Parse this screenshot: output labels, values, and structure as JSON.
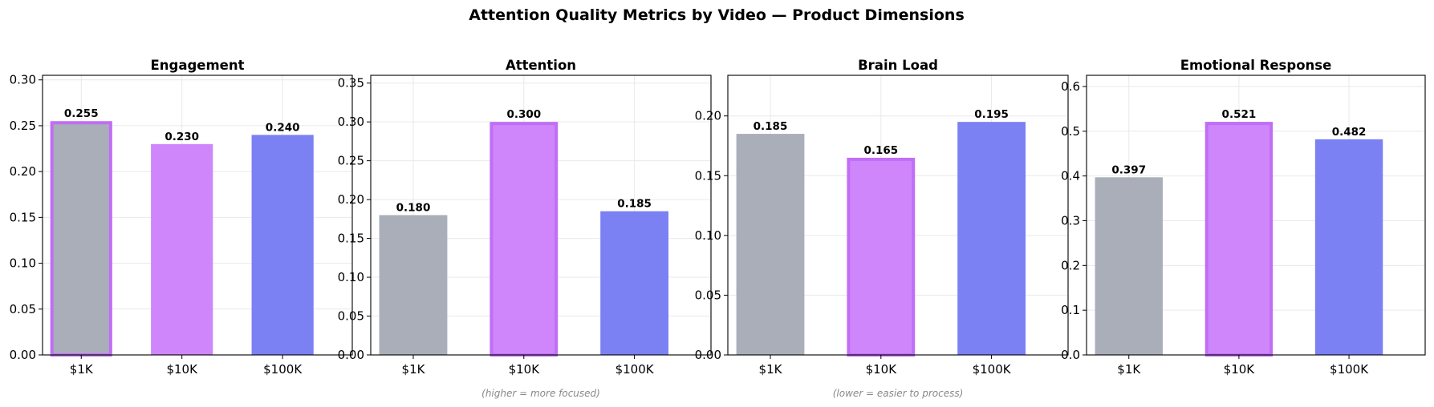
{
  "figure": {
    "title": "Attention Quality Metrics by Video — Product Dimensions"
  },
  "colors": {
    "bar_1k": "#a9aeb9",
    "bar_10k": "#cf86fb",
    "bar_100k": "#7b80f3",
    "highlight_edge": "#c06ef5"
  },
  "chart_data": [
    {
      "type": "bar",
      "title": "Engagement",
      "categories": [
        "$1K",
        "$10K",
        "$100K"
      ],
      "values": [
        0.255,
        0.23,
        0.24
      ],
      "value_labels": [
        "0.255",
        "0.230",
        "0.240"
      ],
      "highlight_index": 0,
      "ylim": [
        0,
        0.305
      ],
      "yticks": [
        0.0,
        0.05,
        0.1,
        0.15,
        0.2,
        0.25,
        0.3
      ],
      "ytick_labels": [
        "0.00",
        "0.05",
        "0.10",
        "0.15",
        "0.20",
        "0.25",
        "0.30"
      ],
      "note": "",
      "grid": true
    },
    {
      "type": "bar",
      "title": "Attention",
      "categories": [
        "$1K",
        "$10K",
        "$100K"
      ],
      "values": [
        0.18,
        0.3,
        0.185
      ],
      "value_labels": [
        "0.180",
        "0.300",
        "0.185"
      ],
      "highlight_index": 1,
      "ylim": [
        0,
        0.36
      ],
      "yticks": [
        0.0,
        0.05,
        0.1,
        0.15,
        0.2,
        0.25,
        0.3,
        0.35
      ],
      "ytick_labels": [
        "0.00",
        "0.05",
        "0.10",
        "0.15",
        "0.20",
        "0.25",
        "0.30",
        "0.35"
      ],
      "note": "(higher = more focused)",
      "grid": true
    },
    {
      "type": "bar",
      "title": "Brain Load",
      "categories": [
        "$1K",
        "$10K",
        "$100K"
      ],
      "values": [
        0.185,
        0.165,
        0.195
      ],
      "value_labels": [
        "0.185",
        "0.165",
        "0.195"
      ],
      "highlight_index": 1,
      "ylim": [
        0,
        0.234
      ],
      "yticks": [
        0.0,
        0.05,
        0.1,
        0.15,
        0.2
      ],
      "ytick_labels": [
        "0.00",
        "0.05",
        "0.10",
        "0.15",
        "0.20"
      ],
      "note": "(lower = easier to process)",
      "grid": true
    },
    {
      "type": "bar",
      "title": "Emotional Response",
      "categories": [
        "$1K",
        "$10K",
        "$100K"
      ],
      "values": [
        0.397,
        0.521,
        0.482
      ],
      "value_labels": [
        "0.397",
        "0.521",
        "0.482"
      ],
      "highlight_index": 1,
      "ylim": [
        0,
        0.625
      ],
      "yticks": [
        0.0,
        0.1,
        0.2,
        0.3,
        0.4,
        0.5,
        0.6
      ],
      "ytick_labels": [
        "0.0",
        "0.1",
        "0.2",
        "0.3",
        "0.4",
        "0.5",
        "0.6"
      ],
      "note": "",
      "grid": true
    }
  ]
}
